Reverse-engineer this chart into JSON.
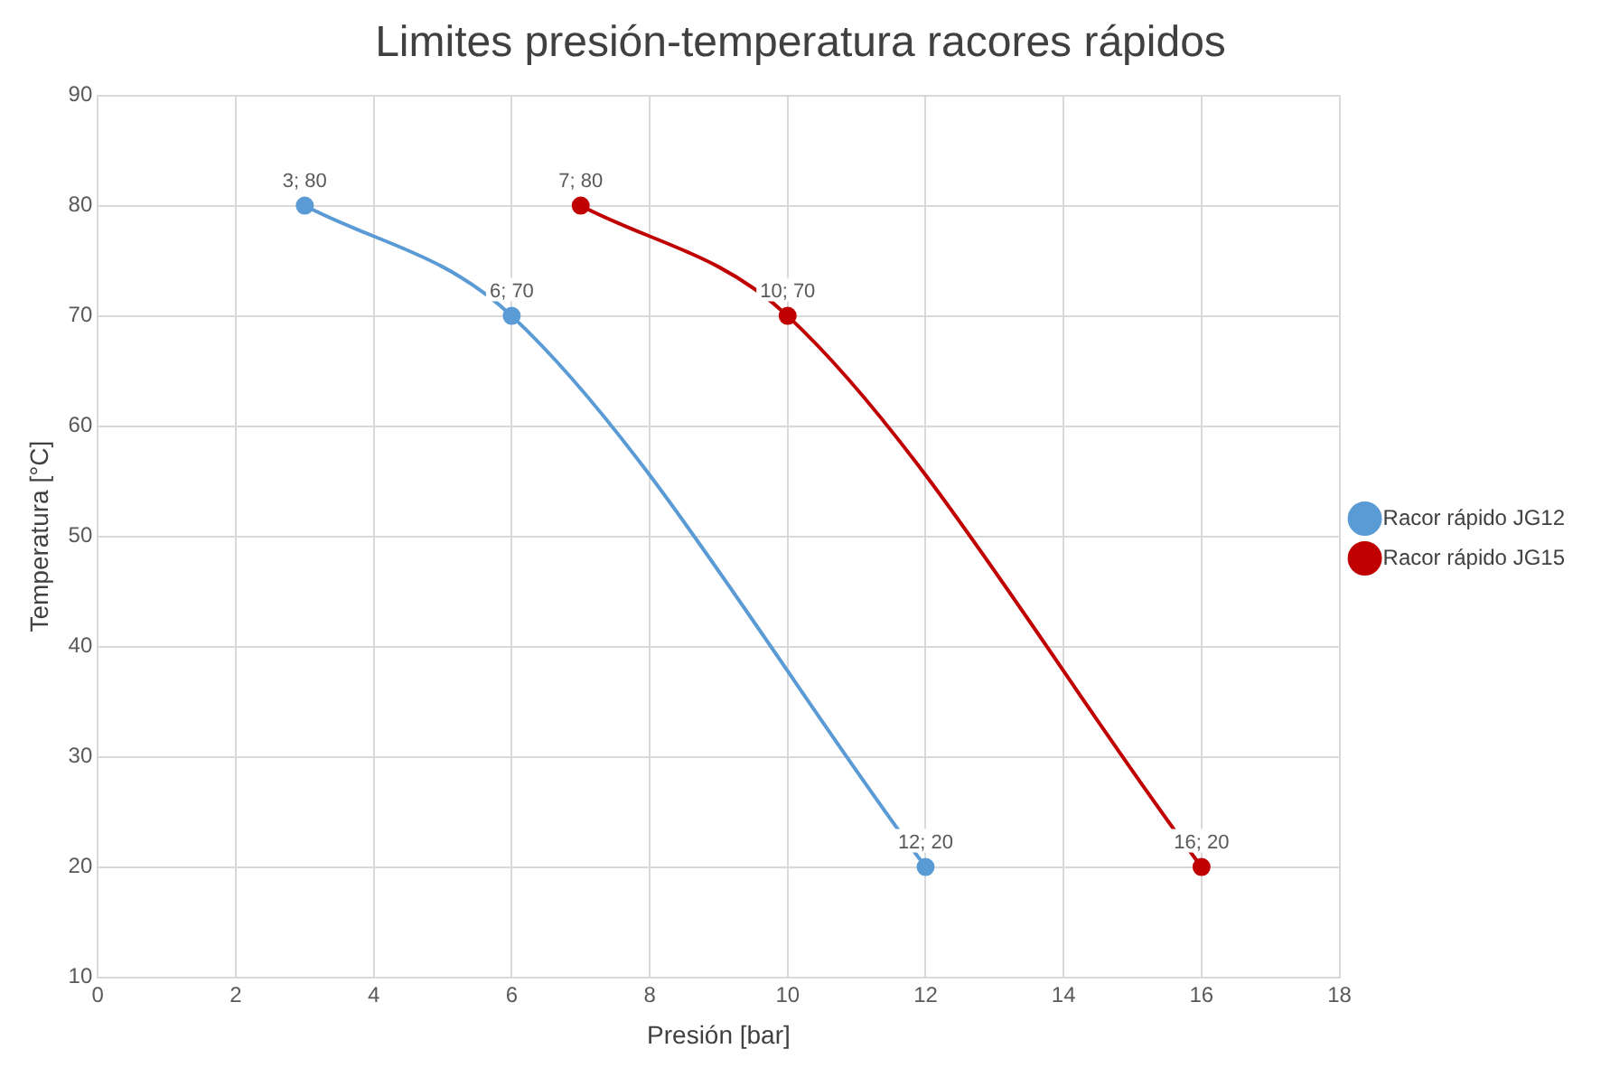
{
  "chart_data": {
    "type": "line",
    "title": "Limites presión-temperatura racores rápidos",
    "xlabel": "Presión [bar]",
    "ylabel": "Temperatura [°C]",
    "xlim": [
      0,
      18
    ],
    "xticks": [
      0,
      2,
      4,
      6,
      8,
      10,
      12,
      14,
      16,
      18
    ],
    "ylim": [
      10,
      90
    ],
    "yticks": [
      10,
      20,
      30,
      40,
      50,
      60,
      70,
      80,
      90
    ],
    "grid": true,
    "legend": "right",
    "marker": "circle",
    "line_style": "solid",
    "series": [
      {
        "name": "Racor rápido JG12",
        "color": "#5b9bd5",
        "x": [
          3,
          6,
          12
        ],
        "values": [
          80,
          70,
          20
        ],
        "value_labels": [
          "3; 80",
          "6; 70",
          "12; 20"
        ]
      },
      {
        "name": "Racor rápido JG15",
        "color": "#c00000",
        "x": [
          7,
          10,
          16
        ],
        "values": [
          80,
          70,
          20
        ],
        "value_labels": [
          "7; 80",
          "10; 70",
          "16; 20"
        ]
      }
    ]
  }
}
